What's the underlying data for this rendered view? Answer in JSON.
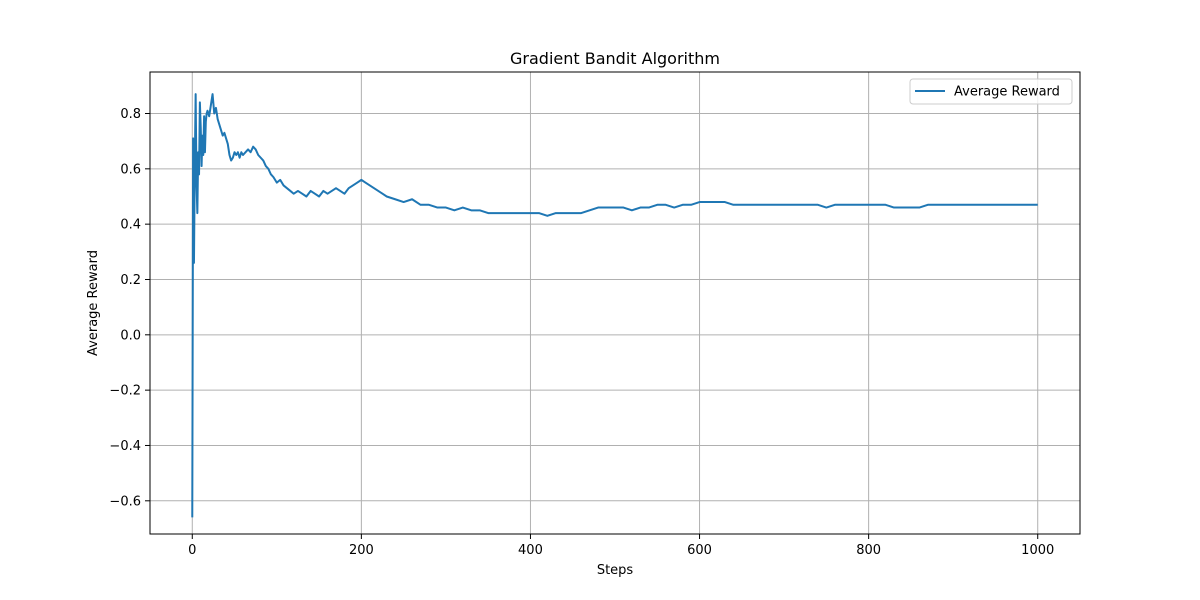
{
  "chart_data": {
    "type": "line",
    "title": "Gradient Bandit Algorithm",
    "xlabel": "Steps",
    "ylabel": "Average Reward",
    "xlim": [
      -50,
      1050
    ],
    "ylim": [
      -0.72,
      0.95
    ],
    "xticks": [
      0,
      200,
      400,
      600,
      800,
      1000
    ],
    "xtick_labels": [
      "0",
      "200",
      "400",
      "600",
      "800",
      "1000"
    ],
    "yticks": [
      -0.6,
      -0.4,
      -0.2,
      0.0,
      0.2,
      0.4,
      0.6,
      0.8
    ],
    "ytick_labels": [
      "−0.6",
      "−0.4",
      "−0.2",
      "0.0",
      "0.2",
      "0.4",
      "0.6",
      "0.8"
    ],
    "grid": true,
    "legend_position": "top-right",
    "series": [
      {
        "name": "Average Reward",
        "color": "#1f77b4",
        "x": [
          0,
          1,
          2,
          3,
          4,
          5,
          6,
          7,
          8,
          9,
          10,
          11,
          12,
          13,
          14,
          15,
          16,
          17,
          18,
          20,
          22,
          24,
          26,
          28,
          30,
          32,
          34,
          36,
          38,
          40,
          42,
          44,
          46,
          48,
          50,
          52,
          54,
          56,
          58,
          60,
          63,
          66,
          69,
          72,
          75,
          78,
          81,
          84,
          87,
          90,
          93,
          96,
          100,
          104,
          108,
          112,
          116,
          120,
          125,
          130,
          135,
          140,
          145,
          150,
          155,
          160,
          165,
          170,
          175,
          180,
          185,
          190,
          195,
          200,
          205,
          210,
          215,
          220,
          225,
          230,
          240,
          250,
          260,
          270,
          280,
          290,
          300,
          310,
          320,
          330,
          340,
          350,
          360,
          370,
          380,
          390,
          400,
          410,
          420,
          430,
          440,
          450,
          460,
          470,
          480,
          490,
          500,
          510,
          520,
          530,
          540,
          550,
          560,
          570,
          580,
          590,
          600,
          610,
          620,
          630,
          640,
          650,
          660,
          670,
          680,
          690,
          700,
          710,
          720,
          730,
          740,
          750,
          760,
          770,
          780,
          790,
          800,
          810,
          820,
          830,
          840,
          850,
          860,
          870,
          880,
          890,
          900,
          910,
          920,
          930,
          940,
          950,
          960,
          970,
          980,
          990,
          1000
        ],
        "y": [
          -0.66,
          0.71,
          0.26,
          0.62,
          0.87,
          0.55,
          0.44,
          0.66,
          0.58,
          0.84,
          0.75,
          0.61,
          0.72,
          0.65,
          0.79,
          0.66,
          0.77,
          0.8,
          0.81,
          0.79,
          0.83,
          0.87,
          0.8,
          0.82,
          0.78,
          0.76,
          0.74,
          0.72,
          0.73,
          0.71,
          0.69,
          0.65,
          0.63,
          0.64,
          0.66,
          0.65,
          0.66,
          0.64,
          0.66,
          0.65,
          0.66,
          0.67,
          0.66,
          0.68,
          0.67,
          0.65,
          0.64,
          0.63,
          0.61,
          0.6,
          0.58,
          0.57,
          0.55,
          0.56,
          0.54,
          0.53,
          0.52,
          0.51,
          0.52,
          0.51,
          0.5,
          0.52,
          0.51,
          0.5,
          0.52,
          0.51,
          0.52,
          0.53,
          0.52,
          0.51,
          0.53,
          0.54,
          0.55,
          0.56,
          0.55,
          0.54,
          0.53,
          0.52,
          0.51,
          0.5,
          0.49,
          0.48,
          0.49,
          0.47,
          0.47,
          0.46,
          0.46,
          0.45,
          0.46,
          0.45,
          0.45,
          0.44,
          0.44,
          0.44,
          0.44,
          0.44,
          0.44,
          0.44,
          0.43,
          0.44,
          0.44,
          0.44,
          0.44,
          0.45,
          0.46,
          0.46,
          0.46,
          0.46,
          0.45,
          0.46,
          0.46,
          0.47,
          0.47,
          0.46,
          0.47,
          0.47,
          0.48,
          0.48,
          0.48,
          0.48,
          0.47,
          0.47,
          0.47,
          0.47,
          0.47,
          0.47,
          0.47,
          0.47,
          0.47,
          0.47,
          0.47,
          0.46,
          0.47,
          0.47,
          0.47,
          0.47,
          0.47,
          0.47,
          0.47,
          0.46,
          0.46,
          0.46,
          0.46,
          0.47,
          0.47,
          0.47,
          0.47,
          0.47,
          0.47,
          0.47,
          0.47,
          0.47,
          0.47,
          0.47,
          0.47,
          0.47,
          0.47
        ]
      }
    ]
  }
}
